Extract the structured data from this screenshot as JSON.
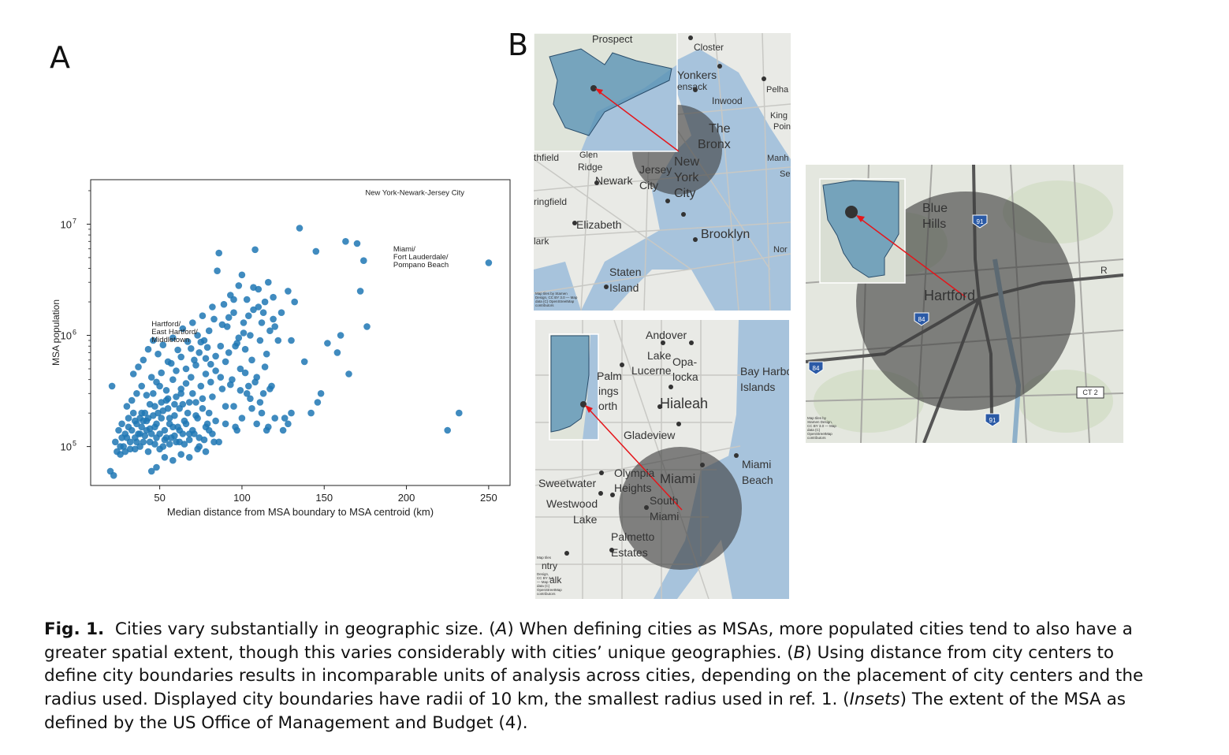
{
  "panel_a_letter": "A",
  "panel_b_letter": "B",
  "chart_data": {
    "type": "scatter",
    "title": "",
    "xlabel": "Median distance from MSA boundary to MSA centroid (km)",
    "ylabel": "MSA population",
    "xlim": [
      8,
      263
    ],
    "ylim_log10": [
      4.65,
      7.4
    ],
    "yscale": "log",
    "x_ticks": [
      50,
      100,
      150,
      200,
      250
    ],
    "x_tick_labels": [
      "50",
      "100",
      "150",
      "200",
      "250"
    ],
    "y_ticks_log10": [
      5,
      6,
      7
    ],
    "y_tick_labels": [
      "10",
      "10",
      "10"
    ],
    "y_tick_exponents": [
      "5",
      "6",
      "7"
    ],
    "grid": false,
    "point_color": "#1f77b4",
    "annotations": [
      {
        "lines": [
          "New York-Newark-Jersey City"
        ],
        "x": 175,
        "y": 18300000
      },
      {
        "lines": [
          "Miami/",
          "Fort Lauderdale/",
          "Pompano Beach"
        ],
        "x": 192,
        "y": 5700000
      },
      {
        "lines": [
          "Hartford/",
          "East Hartford/",
          "Middletown"
        ],
        "x": 45,
        "y": 1210000
      }
    ],
    "points": [
      [
        20,
        60000
      ],
      [
        22,
        55000
      ],
      [
        24,
        90000
      ],
      [
        26,
        85000
      ],
      [
        28,
        100000
      ],
      [
        30,
        120000
      ],
      [
        32,
        110000
      ],
      [
        33,
        140000
      ],
      [
        35,
        95000
      ],
      [
        36,
        160000
      ],
      [
        37,
        130000
      ],
      [
        38,
        180000
      ],
      [
        39,
        150000
      ],
      [
        40,
        110000
      ],
      [
        41,
        200000
      ],
      [
        42,
        170000
      ],
      [
        43,
        90000
      ],
      [
        44,
        240000
      ],
      [
        45,
        130000
      ],
      [
        46,
        300000
      ],
      [
        47,
        150000
      ],
      [
        48,
        120000
      ],
      [
        49,
        200000
      ],
      [
        50,
        350000
      ],
      [
        51,
        180000
      ],
      [
        52,
        100000
      ],
      [
        53,
        140000
      ],
      [
        54,
        260000
      ],
      [
        55,
        220000
      ],
      [
        56,
        160000
      ],
      [
        57,
        120000
      ],
      [
        58,
        400000
      ],
      [
        59,
        190000
      ],
      [
        60,
        280000
      ],
      [
        61,
        150000
      ],
      [
        62,
        110000
      ],
      [
        63,
        330000
      ],
      [
        64,
        240000
      ],
      [
        65,
        170000
      ],
      [
        66,
        500000
      ],
      [
        67,
        200000
      ],
      [
        68,
        130000
      ],
      [
        69,
        420000
      ],
      [
        70,
        300000
      ],
      [
        71,
        600000
      ],
      [
        72,
        250000
      ],
      [
        73,
        180000
      ],
      [
        74,
        700000
      ],
      [
        75,
        350000
      ],
      [
        76,
        220000
      ],
      [
        77,
        900000
      ],
      [
        78,
        450000
      ],
      [
        79,
        160000
      ],
      [
        80,
        1100000
      ],
      [
        81,
        550000
      ],
      [
        82,
        280000
      ],
      [
        83,
        1400000
      ],
      [
        84,
        650000
      ],
      [
        85,
        3800000
      ],
      [
        86,
        5500000
      ],
      [
        87,
        800000
      ],
      [
        88,
        330000
      ],
      [
        89,
        1900000
      ],
      [
        90,
        230000
      ],
      [
        91,
        1200000
      ],
      [
        92,
        700000
      ],
      [
        93,
        2300000
      ],
      [
        94,
        400000
      ],
      [
        95,
        1600000
      ],
      [
        96,
        150000
      ],
      [
        97,
        850000
      ],
      [
        98,
        2800000
      ],
      [
        99,
        500000
      ],
      [
        100,
        3500000
      ],
      [
        101,
        1300000
      ],
      [
        102,
        750000
      ],
      [
        103,
        2100000
      ],
      [
        104,
        350000
      ],
      [
        105,
        1000000
      ],
      [
        106,
        600000
      ],
      [
        107,
        1700000
      ],
      [
        108,
        5900000
      ],
      [
        109,
        420000
      ],
      [
        110,
        2600000
      ],
      [
        111,
        900000
      ],
      [
        112,
        1300000
      ],
      [
        113,
        300000
      ],
      [
        114,
        2000000
      ],
      [
        115,
        680000
      ],
      [
        116,
        150000
      ],
      [
        117,
        1100000
      ],
      [
        118,
        350000
      ],
      [
        119,
        2200000
      ],
      [
        120,
        1200000
      ],
      [
        122,
        900000
      ],
      [
        124,
        1600000
      ],
      [
        126,
        180000
      ],
      [
        128,
        2500000
      ],
      [
        130,
        900000
      ],
      [
        132,
        2000000
      ],
      [
        135,
        9200000
      ],
      [
        138,
        580000
      ],
      [
        142,
        200000
      ],
      [
        145,
        5700000
      ],
      [
        146,
        250000
      ],
      [
        148,
        300000
      ],
      [
        152,
        850000
      ],
      [
        158,
        700000
      ],
      [
        160,
        1000000
      ],
      [
        163,
        7000000
      ],
      [
        165,
        450000
      ],
      [
        170,
        6700000
      ],
      [
        172,
        2500000
      ],
      [
        174,
        4700000
      ],
      [
        176,
        1200000
      ],
      [
        225,
        140000
      ],
      [
        232,
        200000
      ],
      [
        250,
        4500000
      ],
      [
        21,
        350000
      ],
      [
        23,
        110000
      ],
      [
        25,
        140000
      ],
      [
        27,
        120000
      ],
      [
        29,
        90000
      ],
      [
        31,
        180000
      ],
      [
        34,
        200000
      ],
      [
        36,
        110000
      ],
      [
        38,
        130000
      ],
      [
        40,
        170000
      ],
      [
        42,
        140000
      ],
      [
        44,
        110000
      ],
      [
        46,
        190000
      ],
      [
        48,
        160000
      ],
      [
        50,
        130000
      ],
      [
        52,
        210000
      ],
      [
        54,
        120000
      ],
      [
        56,
        180000
      ],
      [
        58,
        150000
      ],
      [
        60,
        110000
      ],
      [
        62,
        220000
      ],
      [
        64,
        130000
      ],
      [
        66,
        160000
      ],
      [
        68,
        250000
      ],
      [
        70,
        140000
      ],
      [
        72,
        190000
      ],
      [
        74,
        120000
      ],
      [
        76,
        270000
      ],
      [
        78,
        150000
      ],
      [
        80,
        200000
      ],
      [
        82,
        130000
      ],
      [
        84,
        170000
      ],
      [
        30,
        230000
      ],
      [
        33,
        260000
      ],
      [
        36,
        300000
      ],
      [
        39,
        350000
      ],
      [
        42,
        290000
      ],
      [
        45,
        420000
      ],
      [
        48,
        380000
      ],
      [
        51,
        460000
      ],
      [
        54,
        320000
      ],
      [
        57,
        560000
      ],
      [
        60,
        480000
      ],
      [
        63,
        640000
      ],
      [
        66,
        370000
      ],
      [
        69,
        760000
      ],
      [
        72,
        540000
      ],
      [
        75,
        870000
      ],
      [
        78,
        620000
      ],
      [
        81,
        380000
      ],
      [
        84,
        480000
      ],
      [
        87,
        420000
      ],
      [
        90,
        580000
      ],
      [
        93,
        360000
      ],
      [
        96,
        800000
      ],
      [
        99,
        320000
      ],
      [
        102,
        460000
      ],
      [
        105,
        270000
      ],
      [
        108,
        380000
      ],
      [
        111,
        250000
      ],
      [
        114,
        520000
      ],
      [
        117,
        330000
      ],
      [
        26,
        100000
      ],
      [
        29,
        130000
      ],
      [
        32,
        95000
      ],
      [
        35,
        120000
      ],
      [
        38,
        100000
      ],
      [
        41,
        125000
      ],
      [
        44,
        145000
      ],
      [
        47,
        105000
      ],
      [
        50,
        95000
      ],
      [
        53,
        115000
      ],
      [
        56,
        105000
      ],
      [
        59,
        125000
      ],
      [
        62,
        140000
      ],
      [
        65,
        105000
      ],
      [
        68,
        115000
      ],
      [
        71,
        130000
      ],
      [
        74,
        100000
      ],
      [
        77,
        115000
      ],
      [
        80,
        140000
      ],
      [
        83,
        110000
      ],
      [
        45,
        60000
      ],
      [
        48,
        65000
      ],
      [
        53,
        80000
      ],
      [
        58,
        75000
      ],
      [
        63,
        85000
      ],
      [
        68,
        80000
      ],
      [
        73,
        95000
      ],
      [
        78,
        90000
      ],
      [
        86,
        110000
      ],
      [
        90,
        160000
      ],
      [
        95,
        230000
      ],
      [
        97,
        140000
      ],
      [
        100,
        180000
      ],
      [
        103,
        300000
      ],
      [
        106,
        220000
      ],
      [
        109,
        160000
      ],
      [
        112,
        200000
      ],
      [
        115,
        140000
      ],
      [
        120,
        180000
      ],
      [
        125,
        140000
      ],
      [
        128,
        160000
      ],
      [
        130,
        200000
      ],
      [
        34,
        450000
      ],
      [
        37,
        520000
      ],
      [
        40,
        600000
      ],
      [
        43,
        750000
      ],
      [
        46,
        900000
      ],
      [
        49,
        680000
      ],
      [
        52,
        820000
      ],
      [
        55,
        580000
      ],
      [
        58,
        950000
      ],
      [
        61,
        740000
      ],
      [
        64,
        1150000
      ],
      [
        67,
        880000
      ],
      [
        70,
        1300000
      ],
      [
        73,
        1000000
      ],
      [
        76,
        1500000
      ],
      [
        79,
        780000
      ],
      [
        82,
        1800000
      ],
      [
        88,
        1250000
      ],
      [
        92,
        1450000
      ],
      [
        95,
        2100000
      ],
      [
        98,
        950000
      ],
      [
        101,
        1050000
      ],
      [
        104,
        1500000
      ],
      [
        107,
        2700000
      ],
      [
        110,
        1800000
      ],
      [
        113,
        1600000
      ],
      [
        116,
        3000000
      ],
      [
        119,
        1400000
      ],
      [
        27,
        160000
      ],
      [
        31,
        150000
      ],
      [
        35,
        170000
      ],
      [
        39,
        200000
      ],
      [
        43,
        180000
      ],
      [
        47,
        230000
      ],
      [
        51,
        250000
      ],
      [
        55,
        270000
      ],
      [
        59,
        240000
      ],
      [
        63,
        300000
      ]
    ]
  },
  "maps": {
    "ny": {
      "labels": [
        "Prospect",
        "Closter",
        "Yonkers",
        "ensack",
        "Pelha",
        "Inwood",
        "King",
        "Poin",
        "The",
        "Bronx",
        "Manh",
        "Se",
        "thfield",
        "Glen",
        "Ridge",
        "Newark",
        "Jersey",
        "City",
        "New",
        "York",
        "City",
        "ringfield",
        "Elizabeth",
        "Brooklyn",
        "lark",
        "Staten",
        "Island",
        "Nor",
        "Map tiles by Stamen",
        "Design, CC BY 3.0 — Map",
        "data (C) OpenStreetMap",
        "contributors"
      ]
    },
    "miami": {
      "labels": [
        "Andover",
        "Lake",
        "Lucerne",
        "Opa-",
        "locka",
        "Palm",
        "ings",
        "orth",
        "Hialeah",
        "Bay Harbo",
        "Islands",
        "Gladeview",
        "Sweetwater",
        "Olympia",
        "Heights",
        "Miami",
        "Miami",
        "Beach",
        "Westwood",
        "Lake",
        "South",
        "Miami",
        "Palmetto",
        "Estates",
        "ntry",
        "alk",
        "Map tiles",
        "Design,",
        "CC BY 3.0",
        "— Map",
        "data (C)",
        "OpenStreetMap",
        "contributors"
      ]
    },
    "hartford": {
      "labels": [
        "Blue",
        "Hills",
        "Hartford",
        "R",
        "CT 2",
        "91",
        "84",
        "84",
        "91",
        "Map tiles by",
        "Stamen Design,",
        "CC BY 3.0 — Map",
        "data (C)",
        "OpenStreetMap",
        "contributors"
      ]
    }
  },
  "caption": {
    "lead": "Fig. 1.",
    "part1": "Cities vary substantially in geographic size. (",
    "a": "A",
    "part2": ") When defining cities as MSAs, more populated cities tend to also have a greater spatial extent, though this varies considerably with cities’ unique geographies. (",
    "b": "B",
    "part3": ") Using distance from city centers to define city boundaries results in incomparable units of analysis across cities, depending on the placement of city centers and the radius used. Displayed city boundaries have radii of 10 km, the smallest radius used in ref. 1. (",
    "insets": "Insets",
    "part4": ") The extent of the MSA as defined by the US Office of Management and Budget (4)."
  },
  "colors": {
    "point": "#1f77b4",
    "water": "#a7c3dc",
    "land": "#e9eae6",
    "circle": "#3e3e3e",
    "inset_fill": "#5b93b5",
    "arrow": "#e5161b"
  }
}
